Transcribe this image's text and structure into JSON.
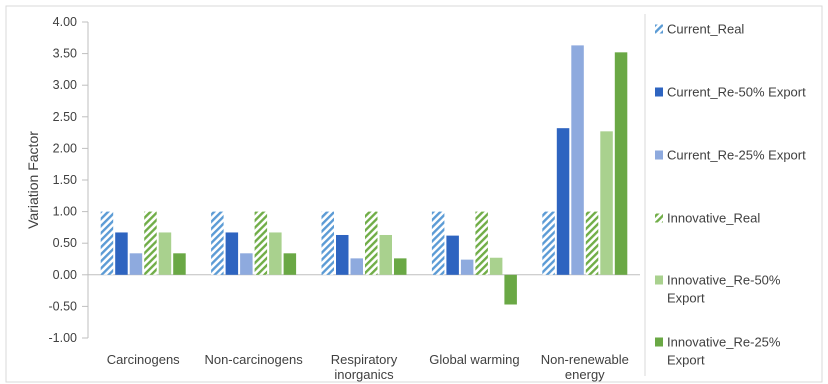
{
  "chart_data": {
    "type": "bar",
    "title": "",
    "xlabel": "",
    "ylabel": "Variation Factor",
    "ylim": [
      -1.0,
      4.0
    ],
    "yticks": [
      "-1.00",
      "-0.50",
      "0.00",
      "0.50",
      "1.00",
      "1.50",
      "2.00",
      "2.50",
      "3.00",
      "3.50",
      "4.00"
    ],
    "grid": false,
    "legend_position": "right",
    "categories": [
      [
        "Carcinogens"
      ],
      [
        "Non-carcinogens"
      ],
      [
        "Respiratory",
        "inorganics"
      ],
      [
        "Global warming"
      ],
      [
        "Non-renewable",
        "energy"
      ]
    ],
    "series": [
      {
        "name": "Current_Real",
        "label_lines": [
          "Current_Real"
        ],
        "color": "#5b9bd5",
        "pattern": "hatch",
        "values": [
          1.0,
          1.0,
          1.0,
          1.0,
          1.0
        ]
      },
      {
        "name": "Current_Re-50% Export",
        "label_lines": [
          "Current_Re-50% Export"
        ],
        "color": "#2e64c0",
        "pattern": "solid",
        "values": [
          0.67,
          0.67,
          0.63,
          0.62,
          2.32
        ]
      },
      {
        "name": "Current_Re-25% Export",
        "label_lines": [
          "Current_Re-25% Export"
        ],
        "color": "#8eaade",
        "pattern": "solid",
        "values": [
          0.34,
          0.34,
          0.26,
          0.24,
          3.63
        ]
      },
      {
        "name": "Innovative_Real",
        "label_lines": [
          "Innovative_Real"
        ],
        "color": "#70ad47",
        "pattern": "hatch",
        "values": [
          1.0,
          1.0,
          1.0,
          1.0,
          1.0
        ]
      },
      {
        "name": "Innovative_Re-50% Export",
        "label_lines": [
          "Innovative_Re-50%",
          "Export"
        ],
        "color": "#a9d18e",
        "pattern": "solid",
        "values": [
          0.67,
          0.67,
          0.63,
          0.27,
          2.27
        ]
      },
      {
        "name": "Innovative_Re-25% Export",
        "label_lines": [
          "Innovative_Re-25%",
          "Export"
        ],
        "color": "#6aa845",
        "pattern": "solid",
        "values": [
          0.34,
          0.34,
          0.26,
          -0.47,
          3.52
        ]
      }
    ]
  }
}
